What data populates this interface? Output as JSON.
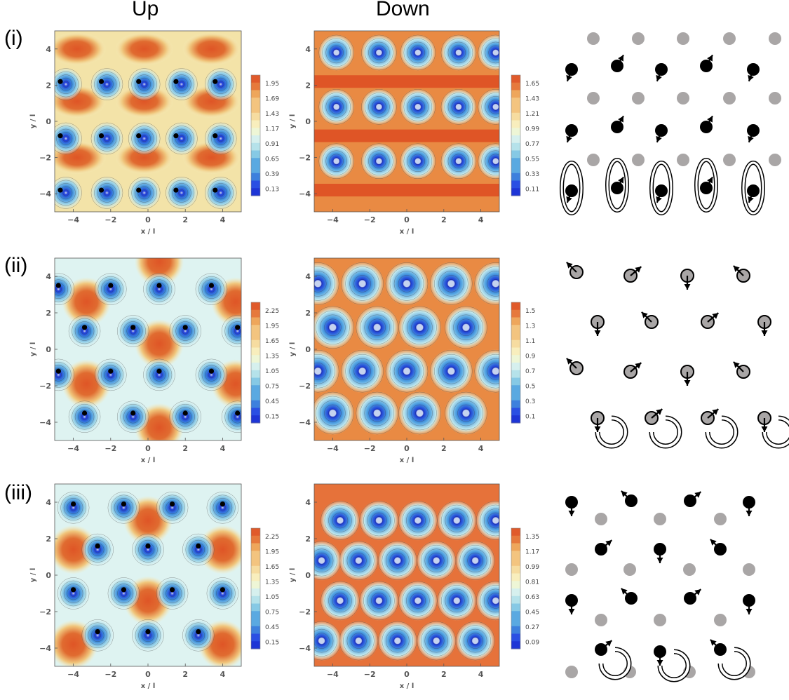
{
  "column_titles": {
    "up": "Up",
    "down": "Down"
  },
  "row_labels": [
    "(i)",
    "(ii)",
    "(iii)"
  ],
  "axis": {
    "xlabel": "x / l",
    "ylabel": "y / l",
    "ticks": [
      "-4",
      "-2",
      "0",
      "2",
      "4"
    ],
    "range": [
      -5,
      5
    ]
  },
  "colors": {
    "low": "#2a4fe3",
    "mid": "#dff6f6",
    "high": "#e05a2b",
    "contour_line": "#333333",
    "site_black": "#000000",
    "site_grey": "#a9a6a6"
  },
  "chart_data": [
    {
      "type": "heatmap",
      "panel": "(i) Up",
      "title": "",
      "xlabel": "x / l",
      "ylabel": "y / l",
      "xlim": [
        -5,
        5
      ],
      "ylim": [
        -5,
        5
      ],
      "colorbar": [
        "1.95",
        "1.69",
        "1.43",
        "1.17",
        "0.91",
        "0.65",
        "0.39",
        "0.13"
      ]
    },
    {
      "type": "heatmap",
      "panel": "(i) Down",
      "title": "",
      "xlabel": "x / l",
      "ylabel": "y / l",
      "xlim": [
        -5,
        5
      ],
      "ylim": [
        -5,
        5
      ],
      "colorbar": [
        "1.65",
        "1.43",
        "1.21",
        "0.99",
        "0.77",
        "0.55",
        "0.33",
        "0.11"
      ]
    },
    {
      "type": "heatmap",
      "panel": "(ii) Up",
      "title": "",
      "xlabel": "x / l",
      "ylabel": "y / l",
      "xlim": [
        -5,
        5
      ],
      "ylim": [
        -5,
        5
      ],
      "colorbar": [
        "2.25",
        "1.95",
        "1.65",
        "1.35",
        "1.05",
        "0.75",
        "0.45",
        "0.15"
      ]
    },
    {
      "type": "heatmap",
      "panel": "(ii) Down",
      "title": "",
      "xlabel": "x / l",
      "ylabel": "y / l",
      "xlim": [
        -5,
        5
      ],
      "ylim": [
        -5,
        5
      ],
      "colorbar": [
        "1.5",
        "1.3",
        "1.1",
        "0.9",
        "0.7",
        "0.5",
        "0.3",
        "0.1"
      ]
    },
    {
      "type": "heatmap",
      "panel": "(iii) Up",
      "title": "",
      "xlabel": "x / l",
      "ylabel": "y / l",
      "xlim": [
        -5,
        5
      ],
      "ylim": [
        -5,
        5
      ],
      "colorbar": [
        "2.25",
        "1.95",
        "1.65",
        "1.35",
        "1.05",
        "0.75",
        "0.45",
        "0.15"
      ]
    },
    {
      "type": "heatmap",
      "panel": "(iii) Down",
      "title": "",
      "xlabel": "x / l",
      "ylabel": "y / l",
      "xlim": [
        -5,
        5
      ],
      "ylim": [
        -5,
        5
      ],
      "colorbar": [
        "1.35",
        "1.17",
        "0.99",
        "0.81",
        "0.63",
        "0.45",
        "0.27",
        "0.09"
      ]
    }
  ]
}
